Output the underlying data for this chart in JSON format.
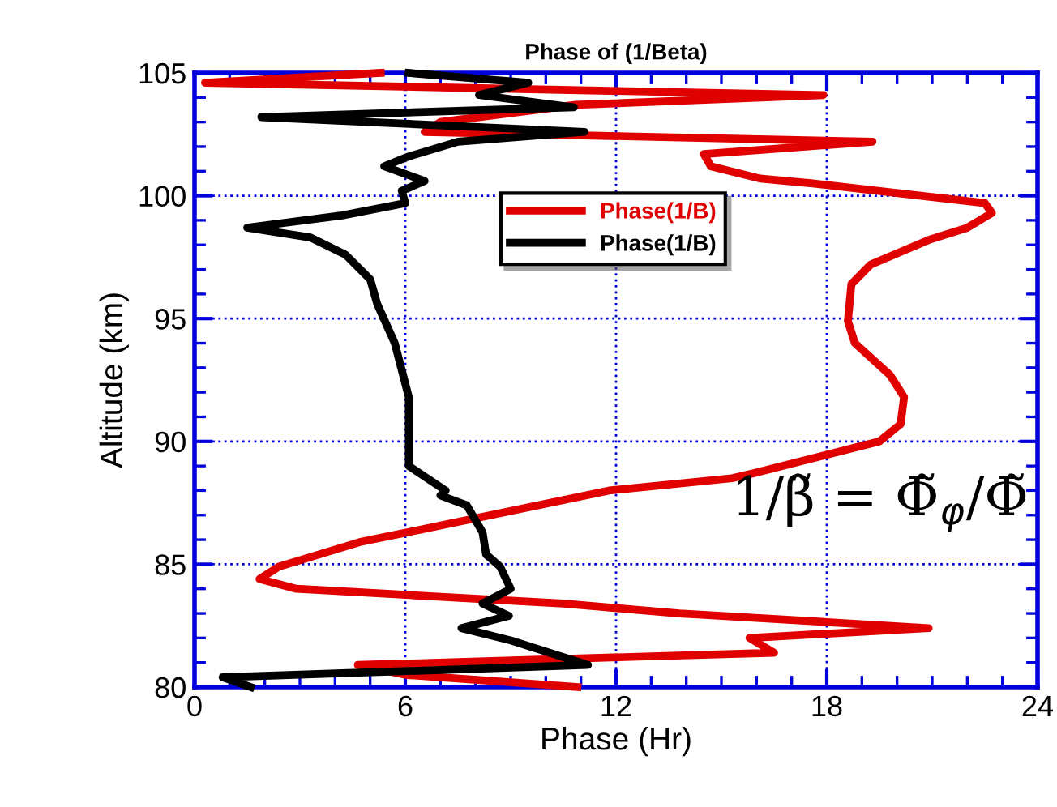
{
  "chart_data": {
    "type": "line",
    "title": "Phase of (1/Beta)",
    "xlabel": "Phase (Hr)",
    "ylabel": "Altitude (km)",
    "xlim": [
      0,
      24
    ],
    "xticks": [
      0,
      6,
      12,
      18,
      24
    ],
    "ylim": [
      80,
      105
    ],
    "yticks": [
      80,
      85,
      90,
      95,
      100,
      105
    ],
    "grid": true,
    "legend": "top",
    "line_style": "solid",
    "marker": "none",
    "annotations": [
      "1/β̃ = Φ̃$_{φ}$/Φ̃"
    ],
    "series": [
      {
        "name": "Phase(1/B)",
        "color": "#e00000",
        "x": [
          10.9,
          6.0,
          4.65,
          16.5,
          15.8,
          20.9,
          13.8,
          10.5,
          2.9,
          1.85,
          2.4,
          4.7,
          6.4,
          11.8,
          15.3,
          15.9,
          19.5,
          20.1,
          20.2,
          19.8,
          18.8,
          18.6,
          18.7,
          19.25,
          20.9,
          22.0,
          22.7,
          22.5,
          17.6,
          16.1,
          14.7,
          14.5,
          19.3,
          6.55,
          7.0,
          10.85,
          17.9,
          0.3,
          5.3
        ],
        "values": [
          80,
          80.5,
          80.9,
          81.4,
          82.0,
          82.4,
          83.0,
          83.4,
          84.0,
          84.4,
          84.9,
          85.9,
          86.4,
          88.0,
          88.5,
          88.7,
          90.0,
          90.7,
          91.8,
          92.7,
          94.0,
          94.9,
          96.4,
          97.2,
          98.2,
          98.7,
          99.3,
          99.7,
          100.5,
          100.7,
          101.2,
          101.7,
          102.2,
          102.6,
          103.0,
          103.7,
          104.1,
          104.6,
          105
        ]
      },
      {
        "name": "Phase(1/B)",
        "color": "#000000",
        "x": [
          1.6,
          0.8,
          11.2,
          9.0,
          7.6,
          8.95,
          8.2,
          9.0,
          8.7,
          8.3,
          8.2,
          7.75,
          7.0,
          7.15,
          6.1,
          6.1,
          5.7,
          5.2,
          5.0,
          4.3,
          3.3,
          1.5,
          4.2,
          6.0,
          5.9,
          6.55,
          5.4,
          6.1,
          7.5,
          11.1,
          1.9,
          10.8,
          8.1,
          9.5,
          6.1
        ],
        "values": [
          80,
          80.4,
          80.9,
          81.9,
          82.4,
          82.9,
          83.4,
          84.0,
          84.9,
          85.4,
          86.3,
          87.4,
          87.8,
          88.0,
          89.0,
          91.8,
          94.0,
          95.6,
          96.6,
          97.6,
          98.3,
          98.7,
          99.2,
          99.7,
          100.2,
          100.6,
          101.2,
          101.6,
          102.2,
          102.6,
          103.2,
          103.6,
          104.1,
          104.6,
          105
        ]
      }
    ]
  }
}
